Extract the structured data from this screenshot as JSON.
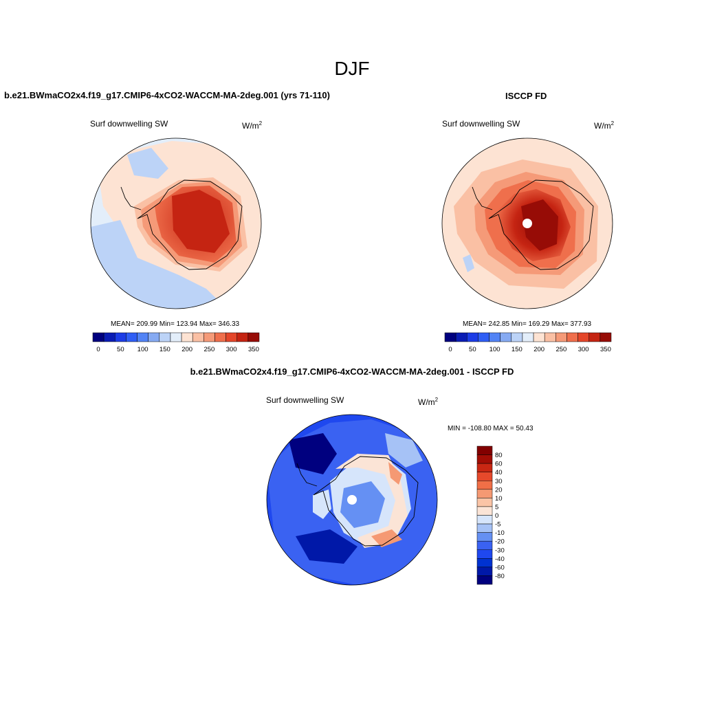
{
  "figure": {
    "title": "DJF",
    "panel_left_header": "b.e21.BWmaCO2x4.f19_g17.CMIP6-4xCO2-WACCM-MA-2deg.001 (yrs 71-110)",
    "panel_right_header": "ISCCP FD",
    "panel_bottom_header": "b.e21.BWmaCO2x4.f19_g17.CMIP6-4xCO2-WACCM-MA-2deg.001 - ISCCP FD"
  },
  "panels": {
    "model": {
      "variable": "Surf downwelling SW",
      "units_base": "W/m",
      "units_exp": "2",
      "stats": "MEAN= 209.99  Min= 123.94  Max= 346.33"
    },
    "obs": {
      "variable": "Surf downwelling SW",
      "units_base": "W/m",
      "units_exp": "2",
      "stats": "MEAN= 242.85  Min= 169.29  Max= 377.93"
    },
    "diff": {
      "variable": "Surf downwelling SW",
      "units_base": "W/m",
      "units_exp": "2",
      "stats": "MIN = -108.80 MAX =  50.43"
    }
  },
  "colorbars": {
    "abs_colors": [
      "#00007f",
      "#0a1cb4",
      "#1c3ce6",
      "#2f5ef5",
      "#5283f5",
      "#86aaf2",
      "#bcd3f7",
      "#e3eefa",
      "#fde3d3",
      "#fac0a4",
      "#f59a78",
      "#ef6f4c",
      "#e4462a",
      "#c52412",
      "#970c06"
    ],
    "abs_labels": [
      "0",
      "50",
      "100",
      "150",
      "200",
      "250",
      "300",
      "350"
    ],
    "diff_colors": [
      "#00007f",
      "#0018a8",
      "#0032d1",
      "#1f48ef",
      "#3a62f2",
      "#6590f3",
      "#a6c2f6",
      "#d6e5fb",
      "#fbe4d6",
      "#fac4a6",
      "#f59973",
      "#f06f47",
      "#e6492b",
      "#c92713",
      "#a20d05",
      "#820000"
    ],
    "diff_labels": [
      "80",
      "60",
      "40",
      "30",
      "20",
      "10",
      "5",
      "0",
      "-5",
      "-10",
      "-20",
      "-30",
      "-40",
      "-60",
      "-80"
    ]
  }
}
